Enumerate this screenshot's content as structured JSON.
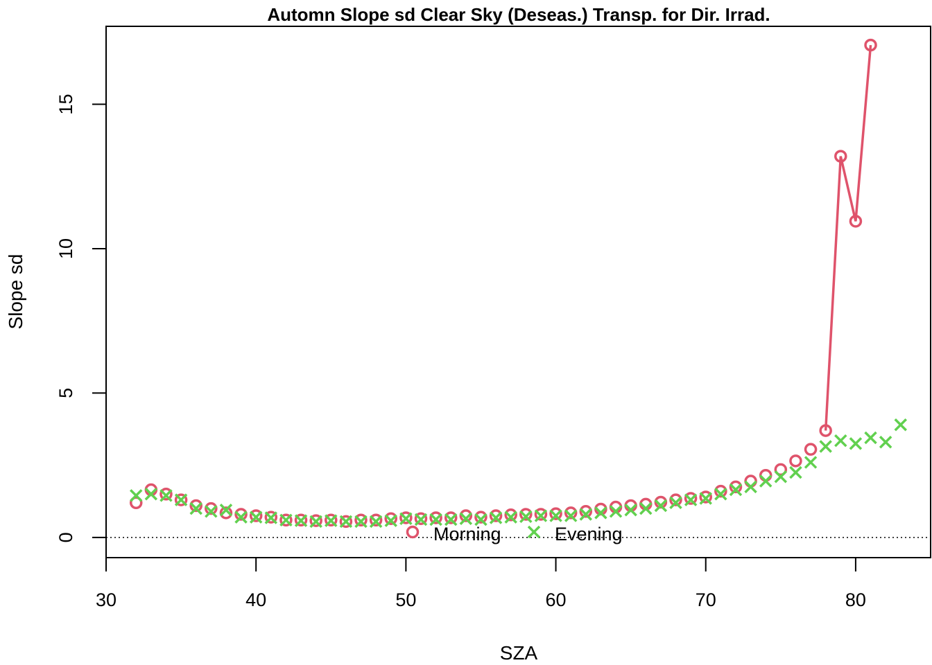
{
  "chart_data": {
    "type": "scatter",
    "title": "Automn Slope sd Clear Sky (Deseas.) Transp. for Dir. Irrad.",
    "xlabel": "SZA",
    "ylabel": "Slope sd",
    "xlim": [
      30,
      85
    ],
    "ylim": [
      -0.7,
      17.7
    ],
    "x_ticks": [
      30,
      40,
      50,
      60,
      70,
      80
    ],
    "y_ticks": [
      0,
      5,
      10,
      15
    ],
    "reference_line": {
      "y": 0,
      "style": "dotted"
    },
    "grid": false,
    "legend": {
      "placement": "bottom-center",
      "horizontal": true
    },
    "series": [
      {
        "name": "Morning",
        "color": "#DF536B",
        "marker": "circle",
        "line_segment_from_x": 77,
        "x": [
          32,
          33,
          34,
          35,
          36,
          37,
          38,
          39,
          40,
          41,
          42,
          43,
          44,
          45,
          46,
          47,
          48,
          49,
          50,
          51,
          52,
          53,
          54,
          55,
          56,
          57,
          58,
          59,
          60,
          61,
          62,
          63,
          64,
          65,
          66,
          67,
          68,
          69,
          70,
          71,
          72,
          73,
          74,
          75,
          76,
          77,
          78,
          79,
          80,
          81
        ],
        "y": [
          1.2,
          1.65,
          1.5,
          1.3,
          1.1,
          1.0,
          0.85,
          0.8,
          0.75,
          0.7,
          0.6,
          0.6,
          0.58,
          0.6,
          0.55,
          0.6,
          0.6,
          0.65,
          0.68,
          0.65,
          0.68,
          0.68,
          0.75,
          0.7,
          0.75,
          0.78,
          0.8,
          0.8,
          0.82,
          0.85,
          0.9,
          0.98,
          1.05,
          1.1,
          1.15,
          1.22,
          1.3,
          1.35,
          1.4,
          1.6,
          1.75,
          1.95,
          2.15,
          2.35,
          2.65,
          3.05,
          3.7,
          13.2,
          10.95,
          17.05
        ]
      },
      {
        "name": "Evening",
        "color": "#61D04F",
        "marker": "x",
        "x": [
          32,
          33,
          34,
          35,
          36,
          37,
          38,
          39,
          40,
          41,
          42,
          43,
          44,
          45,
          46,
          47,
          48,
          49,
          50,
          51,
          52,
          53,
          54,
          55,
          56,
          57,
          58,
          59,
          60,
          61,
          62,
          63,
          64,
          65,
          66,
          67,
          68,
          69,
          70,
          71,
          72,
          73,
          74,
          75,
          76,
          77,
          78,
          79,
          80,
          81,
          82,
          83
        ],
        "y": [
          1.45,
          1.5,
          1.45,
          1.3,
          1.0,
          0.9,
          0.95,
          0.7,
          0.7,
          0.68,
          0.6,
          0.58,
          0.55,
          0.58,
          0.55,
          0.55,
          0.55,
          0.58,
          0.65,
          0.62,
          0.62,
          0.62,
          0.65,
          0.62,
          0.68,
          0.7,
          0.72,
          0.75,
          0.75,
          0.75,
          0.8,
          0.85,
          0.9,
          0.95,
          1.0,
          1.1,
          1.2,
          1.3,
          1.35,
          1.5,
          1.65,
          1.75,
          1.95,
          2.1,
          2.25,
          2.6,
          3.15,
          3.35,
          3.25,
          3.45,
          3.3,
          3.9
        ]
      }
    ]
  }
}
